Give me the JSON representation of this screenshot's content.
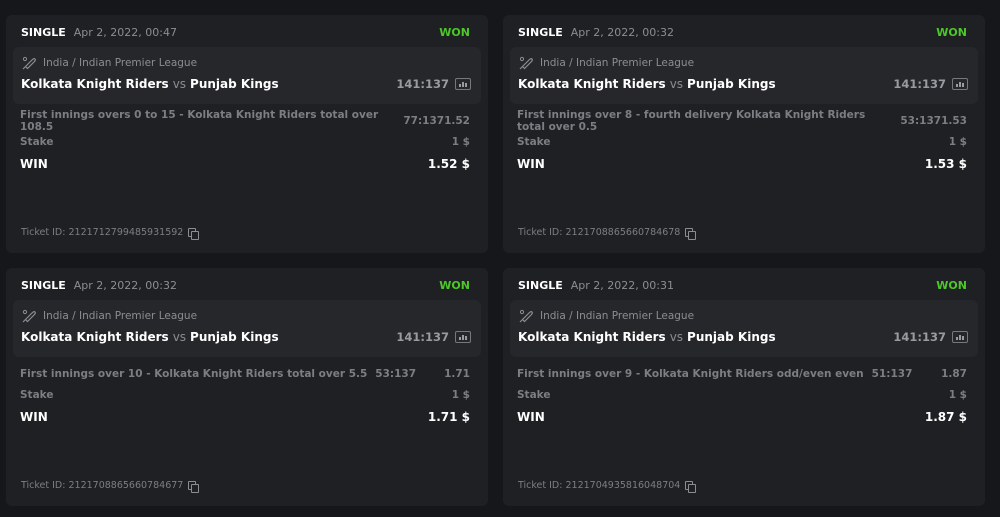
{
  "labels": {
    "stake": "Stake",
    "win": "WIN",
    "ticket_prefix": "Ticket ID:",
    "vs": "vs"
  },
  "colors": {
    "won": "#4cc827"
  },
  "tickets": [
    {
      "type": "SINGLE",
      "date": "Apr 2, 2022, 00:47",
      "status": "WON",
      "league": "India / Indian Premier League",
      "home": "Kolkata Knight Riders",
      "away": "Punjab Kings",
      "score": "141:137",
      "market": "First innings overs 0 to 15 - Kolkata Knight Riders total over 108.5",
      "market_score": "77:137",
      "odds": "1.52",
      "stake": "1 $",
      "win": "1.52 $",
      "ticket_id": "2121712799485931592"
    },
    {
      "type": "SINGLE",
      "date": "Apr 2, 2022, 00:32",
      "status": "WON",
      "league": "India / Indian Premier League",
      "home": "Kolkata Knight Riders",
      "away": "Punjab Kings",
      "score": "141:137",
      "market": "First innings over 8 - fourth delivery Kolkata Knight Riders total over 0.5",
      "market_score": "53:137",
      "odds": "1.53",
      "stake": "1 $",
      "win": "1.53 $",
      "ticket_id": "2121708865660784678"
    },
    {
      "type": "SINGLE",
      "date": "Apr 2, 2022, 00:32",
      "status": "WON",
      "league": "India / Indian Premier League",
      "home": "Kolkata Knight Riders",
      "away": "Punjab Kings",
      "score": "141:137",
      "market": "First innings over 10 - Kolkata Knight Riders total over 5.5",
      "market_score": "53:137",
      "odds": "1.71",
      "stake": "1 $",
      "win": "1.71 $",
      "ticket_id": "2121708865660784677"
    },
    {
      "type": "SINGLE",
      "date": "Apr 2, 2022, 00:31",
      "status": "WON",
      "league": "India / Indian Premier League",
      "home": "Kolkata Knight Riders",
      "away": "Punjab Kings",
      "score": "141:137",
      "market": "First innings over 9 - Kolkata Knight Riders odd/even even",
      "market_score": "51:137",
      "odds": "1.87",
      "stake": "1 $",
      "win": "1.87 $",
      "ticket_id": "2121704935816048704"
    }
  ]
}
